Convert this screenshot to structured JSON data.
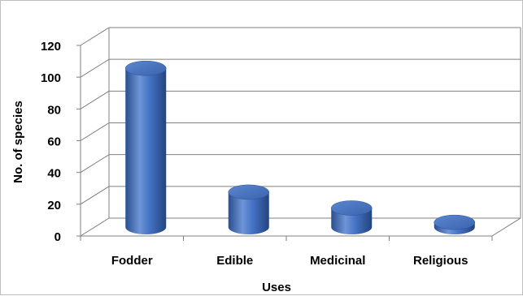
{
  "chart_data": {
    "type": "bar",
    "title": "",
    "xlabel": "Uses",
    "ylabel": "No. of species",
    "categories": [
      "Fodder",
      "Edible",
      "Medicinal",
      "Religious"
    ],
    "series": [
      {
        "values": [
          100,
          22,
          12,
          3
        ]
      }
    ],
    "ylim": [
      0,
      120
    ],
    "yticks": [
      0,
      20,
      40,
      60,
      80,
      100,
      120
    ],
    "grid": true,
    "legend": "none",
    "style": "3d-cylinder",
    "colors": {
      "bar": "#4472c4",
      "bar_dark": "#2a4f8f",
      "bar_light": "#7fa3e0",
      "grid": "#808080"
    }
  }
}
